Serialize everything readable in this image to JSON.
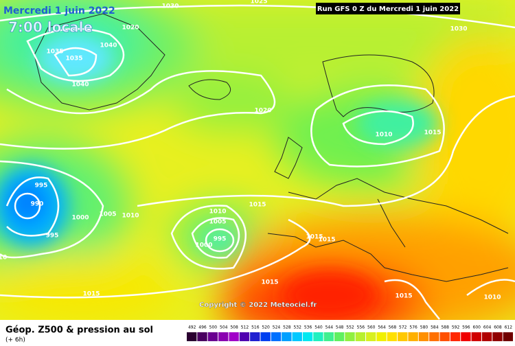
{
  "header": {
    "title": "Mercredi 1 juin 2022",
    "time": "7:00 locale",
    "run": "Run GFS 0 Z du Mercredi 1 juin 2022"
  },
  "copyright": "Copyright © 2022 Meteociel.fr",
  "legend": {
    "title": "Géop. Z500 & pression au sol",
    "lead": "(+ 6h)",
    "scale": [
      492,
      496,
      500,
      504,
      508,
      512,
      516,
      520,
      524,
      528,
      532,
      536,
      540,
      544,
      548,
      552,
      556,
      560,
      564,
      568,
      572,
      576,
      580,
      584,
      588,
      592,
      596,
      600,
      604,
      608,
      612
    ]
  },
  "isobar_labels": [
    "1025",
    "1030",
    "1020",
    "1040",
    "1035",
    "1035",
    "1040",
    "1030",
    "1020",
    "1010",
    "1015",
    "995",
    "990",
    "1000",
    "1005",
    "1010",
    "995",
    "1015",
    "1010",
    "1005",
    "995",
    "1000",
    "1015",
    "1015",
    "10",
    "1015",
    "1015",
    "1015",
    "1010"
  ]
}
